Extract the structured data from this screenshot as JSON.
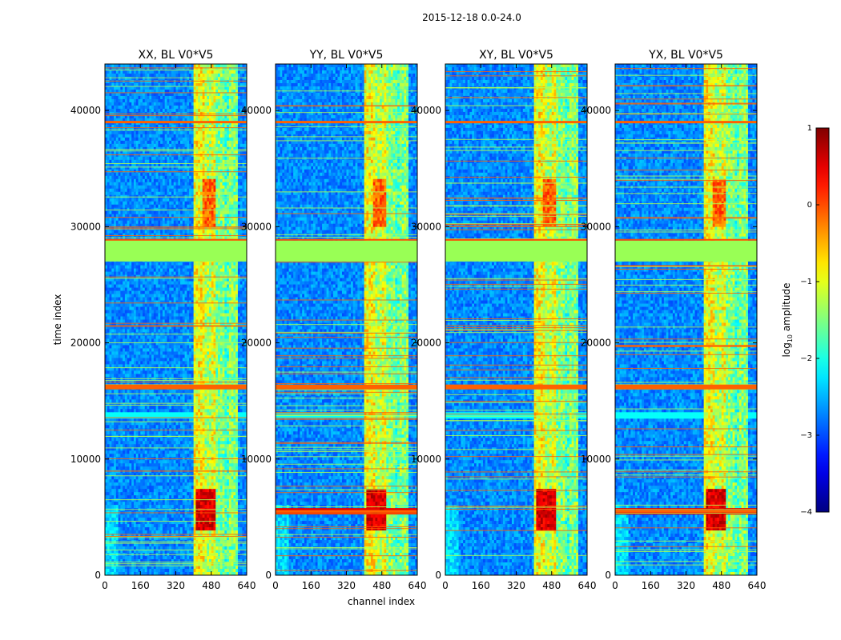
{
  "figure": {
    "suptitle": "2015-12-18 0.0-24.0"
  },
  "chart_data": [
    {
      "type": "heatmap",
      "title": "XX, BL V0*V5",
      "xlabel": "",
      "ylabel": "time index",
      "xlim": [
        0,
        640
      ],
      "ylim": [
        0,
        44000
      ],
      "xticks": [
        0,
        160,
        320,
        480,
        640
      ],
      "yticks": [
        0,
        10000,
        20000,
        30000,
        40000
      ]
    },
    {
      "type": "heatmap",
      "title": "YY, BL V0*V5",
      "xlabel": "channel index",
      "ylabel": "",
      "xlim": [
        0,
        640
      ],
      "ylim": [
        0,
        44000
      ],
      "xticks": [
        0,
        160,
        320,
        480,
        640
      ],
      "yticks": [
        0,
        10000,
        20000,
        30000,
        40000
      ]
    },
    {
      "type": "heatmap",
      "title": "XY, BL V0*V5",
      "xlabel": "",
      "ylabel": "",
      "xlim": [
        0,
        640
      ],
      "ylim": [
        0,
        44000
      ],
      "xticks": [
        0,
        160,
        320,
        480,
        640
      ],
      "yticks": [
        0,
        10000,
        20000,
        30000,
        40000
      ]
    },
    {
      "type": "heatmap",
      "title": "YX, BL V0*V5",
      "xlabel": "",
      "ylabel": "",
      "xlim": [
        0,
        640
      ],
      "ylim": [
        0,
        44000
      ],
      "xticks": [
        0,
        160,
        320,
        480,
        640
      ],
      "yticks": [
        0,
        10000,
        20000,
        30000,
        40000
      ]
    }
  ],
  "colorbar": {
    "label_prefix": "log",
    "label_sub": "10",
    "label_suffix": " amplitude",
    "range": [
      -4,
      1
    ],
    "ticks": [
      {
        "value": 1,
        "label": "1"
      },
      {
        "value": 0,
        "label": "0"
      },
      {
        "value": -1,
        "label": "−1"
      },
      {
        "value": -2,
        "label": "−2"
      },
      {
        "value": -3,
        "label": "−3"
      },
      {
        "value": -4,
        "label": "−4"
      }
    ],
    "colormap": "jet"
  },
  "features": {
    "flagged_time_range": [
      27000,
      28800
    ],
    "flagged_color": "#99ff55",
    "strong_rfi_rows": [
      16200,
      39000,
      5500
    ],
    "rfi_channel_bands": [
      [
        405,
        450
      ],
      [
        455,
        480
      ],
      [
        482,
        500
      ],
      [
        505,
        540
      ],
      [
        545,
        560
      ],
      [
        565,
        600
      ]
    ]
  }
}
